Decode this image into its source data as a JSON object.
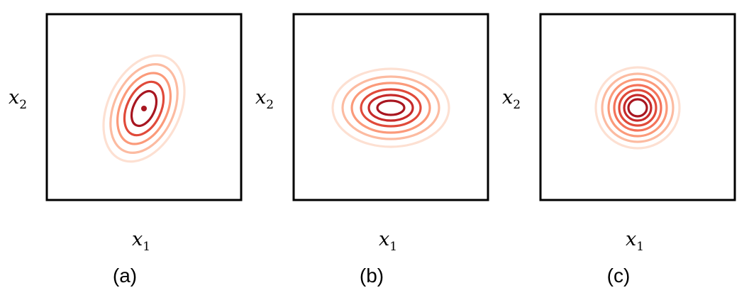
{
  "figure": {
    "panels": [
      {
        "id": "a",
        "caption": "(a)",
        "xlabel": {
          "var": "x",
          "sub": "1"
        },
        "ylabel": {
          "var": "x",
          "sub": "2"
        },
        "shape": "tilted-ellipse",
        "center_dot": true
      },
      {
        "id": "b",
        "caption": "(b)",
        "xlabel": {
          "var": "x",
          "sub": "1"
        },
        "ylabel": {
          "var": "x",
          "sub": "2"
        },
        "shape": "horizontal-ellipse",
        "center_dot": false
      },
      {
        "id": "c",
        "caption": "(c)",
        "xlabel": {
          "var": "x",
          "sub": "1"
        },
        "ylabel": {
          "var": "x",
          "sub": "2"
        },
        "shape": "circle",
        "center_dot": false
      }
    ],
    "contour_colors": [
      "#fde0d2",
      "#fcbba1",
      "#fb9a7a",
      "#f4735a",
      "#e04a3a",
      "#c62a2a",
      "#a81620"
    ],
    "frame_color": "#000000"
  }
}
